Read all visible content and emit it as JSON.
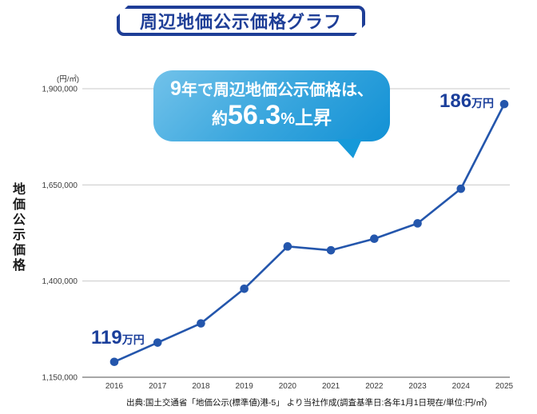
{
  "header": {
    "title": "周辺地価公示価格グラフ"
  },
  "callout": {
    "line1_big": "9",
    "line1_rest": "年で周辺地価公示価格は、",
    "line2_prefix": "約",
    "line2_value": "56.3",
    "line2_unit": "%",
    "line2_suffix": "上昇"
  },
  "annotations": {
    "start_value": "119",
    "start_unit": "万円",
    "end_value": "186",
    "end_unit": "万円"
  },
  "source_note": "出典:国土交通省「地価公示(標準値)港-5」 より当社作成(調査基準日:各年1月1日現在/単位:円/㎡)",
  "colors": {
    "navy": "#1e3e97",
    "line": "#2456ac",
    "grid": "#c9c9c9",
    "axis": "#8a8a8a",
    "tick_text": "#3a3a3a",
    "bubble_from": "#72c2ea",
    "bubble_to": "#1291d5"
  },
  "chart_data": {
    "type": "line",
    "title": "周辺地価公示価格グラフ",
    "x": [
      "2016",
      "2017",
      "2018",
      "2019",
      "2020",
      "2021",
      "2022",
      "2023",
      "2024",
      "2025"
    ],
    "values": [
      1190000,
      1240000,
      1290000,
      1380000,
      1490000,
      1480000,
      1510000,
      1550000,
      1640000,
      1860000
    ],
    "ylabel": "地価公示価格",
    "y_unit": "(円/㎡)",
    "ylim": [
      1150000,
      1900000
    ],
    "yticks": [
      1900000,
      1650000,
      1400000,
      1150000
    ],
    "ytick_labels": [
      "1,900,000",
      "1,650,000",
      "1,400,000",
      "1,150,000"
    ],
    "grid": true,
    "legend": false,
    "annotations": {
      "2016": "119万円",
      "2025": "186万円"
    },
    "callout_text": "9年で周辺地価公示価格は、約56.3%上昇"
  }
}
